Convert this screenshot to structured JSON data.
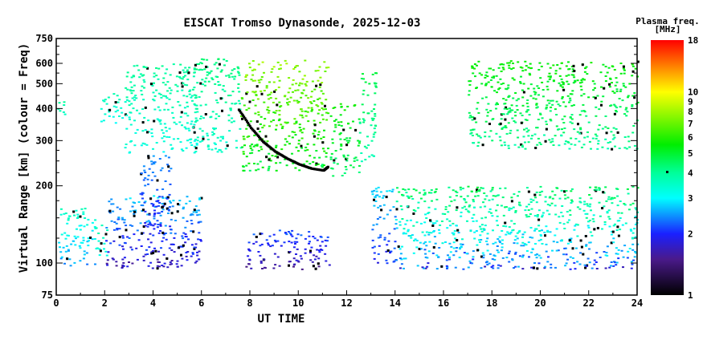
{
  "chart_data": {
    "type": "scatter",
    "title": "EISCAT Tromso Dynasonde, 2025-12-03",
    "xlabel": "UT TIME",
    "ylabel": "Virtual Range [km] (colour = Freq)",
    "xlim": [
      0,
      24
    ],
    "ylim": [
      75,
      750
    ],
    "yscale": "log",
    "xticks": [
      0,
      2,
      4,
      6,
      8,
      10,
      12,
      14,
      16,
      18,
      20,
      22,
      24
    ],
    "yticks": [
      75,
      100,
      200,
      300,
      400,
      500,
      600,
      750
    ],
    "colorbar": {
      "title": "Plasma freq.",
      "units": "[MHz]",
      "range": [
        1,
        18
      ],
      "ticks": [
        1,
        2,
        3,
        4,
        5,
        6,
        7,
        8,
        9,
        10,
        18
      ],
      "colormap": [
        {
          "f": 1,
          "color": "#000000"
        },
        {
          "f": 1.5,
          "color": "#4a1a8a"
        },
        {
          "f": 2,
          "color": "#1a20ff"
        },
        {
          "f": 3,
          "color": "#00ffff"
        },
        {
          "f": 4,
          "color": "#00ff99"
        },
        {
          "f": 5.5,
          "color": "#00ee00"
        },
        {
          "f": 10,
          "color": "#ffff00"
        },
        {
          "f": 18,
          "color": "#ff0000"
        }
      ]
    },
    "regions": [
      {
        "t": [
          0,
          0.4
        ],
        "h": [
          370,
          440
        ],
        "f": [
          3.2,
          4.2
        ]
      },
      {
        "t": [
          0,
          1.6
        ],
        "h": [
          98,
          165
        ],
        "f": [
          2.2,
          3.8
        ]
      },
      {
        "t": [
          1.6,
          2.1
        ],
        "h": [
          105,
          145
        ],
        "f": [
          3,
          4
        ]
      },
      {
        "t": [
          2.0,
          6.0
        ],
        "h": [
          96,
          185
        ],
        "f": [
          1.4,
          3.0
        ]
      },
      {
        "t": [
          3.4,
          4.7
        ],
        "h": [
          130,
          270
        ],
        "f": [
          1.8,
          2.6
        ]
      },
      {
        "t": [
          1.8,
          3.0
        ],
        "h": [
          350,
          460
        ],
        "f": [
          3.0,
          3.8
        ]
      },
      {
        "t": [
          2.8,
          5.8
        ],
        "h": [
          270,
          600
        ],
        "f": [
          3.0,
          4.2
        ]
      },
      {
        "t": [
          5.6,
          7.6
        ],
        "h": [
          270,
          630
        ],
        "f": [
          3.2,
          4.5
        ]
      },
      {
        "t": [
          7.6,
          11.2
        ],
        "h": [
          230,
          620
        ],
        "f": [
          4.2,
          8.5
        ]
      },
      {
        "t": [
          7.8,
          11.3
        ],
        "h": [
          95,
          135
        ],
        "f": [
          1.4,
          2.4
        ]
      },
      {
        "t": [
          11.3,
          12.5
        ],
        "h": [
          220,
          420
        ],
        "f": [
          4,
          6
        ]
      },
      {
        "t": [
          12.5,
          13.2
        ],
        "h": [
          250,
          560
        ],
        "f": [
          3.5,
          5
        ]
      },
      {
        "t": [
          13.0,
          14.0
        ],
        "h": [
          100,
          200
        ],
        "f": [
          1.8,
          3
        ]
      },
      {
        "t": [
          14.0,
          24.0
        ],
        "h": [
          95,
          200
        ],
        "f": [
          1.6,
          5
        ]
      },
      {
        "t": [
          17.0,
          24.0
        ],
        "h": [
          280,
          620
        ],
        "f": [
          3.5,
          6
        ]
      }
    ],
    "trace": {
      "name": "F-layer trace",
      "t": [
        7.5,
        8,
        8.5,
        9,
        9.5,
        10,
        10.5,
        11,
        11.2
      ],
      "h": [
        400,
        340,
        300,
        275,
        258,
        245,
        236,
        232,
        240
      ]
    }
  }
}
